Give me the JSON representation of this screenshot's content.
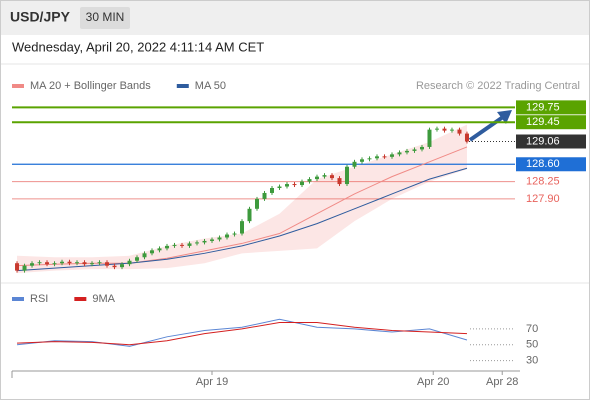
{
  "header": {
    "symbol": "USD/JPY",
    "interval": "30 MIN",
    "datetime": "Wednesday, April 20, 2022 4:11:14 AM CET"
  },
  "chart_data": [
    {
      "type": "candlestick",
      "source": "Research © 2022 Trading Central",
      "xlim": [
        -0.67,
        67.07
      ],
      "ylim": [
        126.2,
        130.0
      ],
      "up_color": "#3d9a3d",
      "down_color": "#c8392e",
      "open": [
        126.6,
        126.45,
        126.55,
        126.6,
        126.62,
        126.58,
        126.6,
        126.63,
        126.6,
        126.62,
        126.58,
        126.6,
        126.62,
        126.55,
        126.52,
        126.58,
        126.65,
        126.72,
        126.8,
        126.86,
        126.9,
        126.95,
        126.97,
        126.95,
        127.0,
        127.02,
        127.05,
        127.08,
        127.12,
        127.18,
        127.2,
        127.45,
        127.7,
        127.9,
        128.02,
        128.12,
        128.15,
        128.2,
        128.18,
        128.25,
        128.3,
        128.35,
        128.38,
        128.32,
        128.2,
        128.55,
        128.65,
        128.7,
        128.72,
        128.76,
        128.75,
        128.8,
        128.84,
        128.87,
        128.9,
        128.95,
        129.3,
        129.32,
        129.28,
        129.3,
        129.22
      ],
      "high": [
        126.64,
        126.59,
        126.64,
        126.66,
        126.66,
        126.64,
        126.67,
        126.67,
        126.66,
        126.66,
        126.64,
        126.66,
        126.66,
        126.59,
        126.62,
        126.69,
        126.76,
        126.84,
        126.9,
        126.94,
        126.99,
        127.01,
        127.01,
        127.04,
        127.06,
        127.09,
        127.12,
        127.16,
        127.22,
        127.24,
        127.49,
        127.74,
        127.94,
        128.06,
        128.16,
        128.19,
        128.24,
        128.24,
        128.29,
        128.34,
        128.39,
        128.42,
        128.42,
        128.36,
        128.59,
        128.69,
        128.74,
        128.76,
        128.8,
        128.8,
        128.84,
        128.88,
        128.91,
        128.94,
        128.99,
        129.34,
        129.36,
        129.36,
        129.34,
        129.34,
        129.26
      ],
      "low": [
        126.41,
        126.41,
        126.51,
        126.56,
        126.54,
        126.54,
        126.56,
        126.56,
        126.56,
        126.54,
        126.54,
        126.56,
        126.51,
        126.48,
        126.48,
        126.54,
        126.61,
        126.68,
        126.76,
        126.82,
        126.86,
        126.91,
        126.91,
        126.91,
        126.96,
        126.98,
        127.01,
        127.04,
        127.08,
        127.14,
        127.16,
        127.41,
        127.66,
        127.86,
        127.98,
        128.08,
        128.11,
        128.14,
        128.14,
        128.21,
        128.26,
        128.31,
        128.28,
        128.16,
        128.16,
        128.51,
        128.61,
        128.66,
        128.68,
        128.71,
        128.71,
        128.76,
        128.8,
        128.83,
        128.86,
        128.91,
        129.26,
        129.24,
        129.24,
        129.18,
        129.02
      ],
      "close": [
        126.45,
        126.55,
        126.6,
        126.62,
        126.58,
        126.6,
        126.63,
        126.6,
        126.62,
        126.58,
        126.6,
        126.62,
        126.55,
        126.52,
        126.58,
        126.65,
        126.72,
        126.8,
        126.86,
        126.9,
        126.95,
        126.97,
        126.95,
        127.0,
        127.02,
        127.05,
        127.08,
        127.12,
        127.18,
        127.2,
        127.45,
        127.7,
        127.9,
        128.02,
        128.12,
        128.15,
        128.2,
        128.18,
        128.25,
        128.3,
        128.35,
        128.38,
        128.32,
        128.2,
        128.55,
        128.65,
        128.7,
        128.72,
        128.76,
        128.75,
        128.8,
        128.84,
        128.87,
        128.9,
        128.95,
        129.3,
        129.32,
        129.28,
        129.3,
        129.22,
        129.06
      ],
      "ma_x": [
        0,
        5,
        10,
        15,
        20,
        25,
        30,
        35,
        40,
        45,
        50,
        55,
        60
      ],
      "series": [
        {
          "name": "MA 20 + Bollinger Bands",
          "color": "#f08a86",
          "values": [
            126.55,
            126.58,
            126.6,
            126.6,
            126.7,
            126.85,
            127.0,
            127.2,
            127.6,
            128.0,
            128.35,
            128.65,
            128.95
          ],
          "upper": [
            126.75,
            126.72,
            126.72,
            126.75,
            126.95,
            127.1,
            127.2,
            127.6,
            128.3,
            128.55,
            128.8,
            129.05,
            129.4
          ],
          "lower": [
            126.4,
            126.45,
            126.48,
            126.48,
            126.5,
            126.6,
            126.8,
            126.85,
            126.9,
            127.45,
            127.9,
            128.25,
            128.5
          ]
        },
        {
          "name": "MA 50",
          "color": "#2f5c9e",
          "values": [
            126.45,
            126.5,
            126.55,
            126.6,
            126.68,
            126.8,
            126.95,
            127.15,
            127.4,
            127.7,
            128.0,
            128.3,
            128.52
          ]
        }
      ],
      "levels": [
        129.75,
        129.45,
        129.06,
        {
          "value": 128.6,
          "label": "128.60"
        },
        128.25,
        {
          "value": 127.9,
          "label": "127.90"
        }
      ],
      "level_colors": [
        "#5aa300",
        "#5aa300",
        "#333333",
        "#1f6fd6",
        "#e8625c",
        "#e8625c"
      ],
      "level_styles": [
        "box",
        "box",
        "tag",
        "box",
        "text",
        "text"
      ]
    },
    {
      "type": "line",
      "xlim": [
        -0.67,
        67.07
      ],
      "ylim": [
        17,
        100
      ],
      "yticks": [
        70,
        50,
        30
      ],
      "xticks": [
        {
          "value": 26,
          "label": "Apr 19"
        },
        {
          "value": 55.5,
          "label": "Apr 20"
        },
        {
          "value": 64.7,
          "label": "Apr 28"
        }
      ],
      "x": [
        0,
        5,
        10,
        15,
        20,
        25,
        30,
        35,
        40,
        45,
        50,
        55,
        60
      ],
      "series": [
        {
          "name": "RSI",
          "color": "#5b86d4",
          "values": [
            50,
            55,
            54,
            48,
            60,
            68,
            72,
            82,
            72,
            70,
            66,
            70,
            56
          ]
        },
        {
          "name": "9MA",
          "color": "#d42020",
          "values": [
            52,
            54,
            53,
            50,
            55,
            64,
            70,
            78,
            78,
            72,
            68,
            66,
            64
          ]
        }
      ]
    }
  ]
}
